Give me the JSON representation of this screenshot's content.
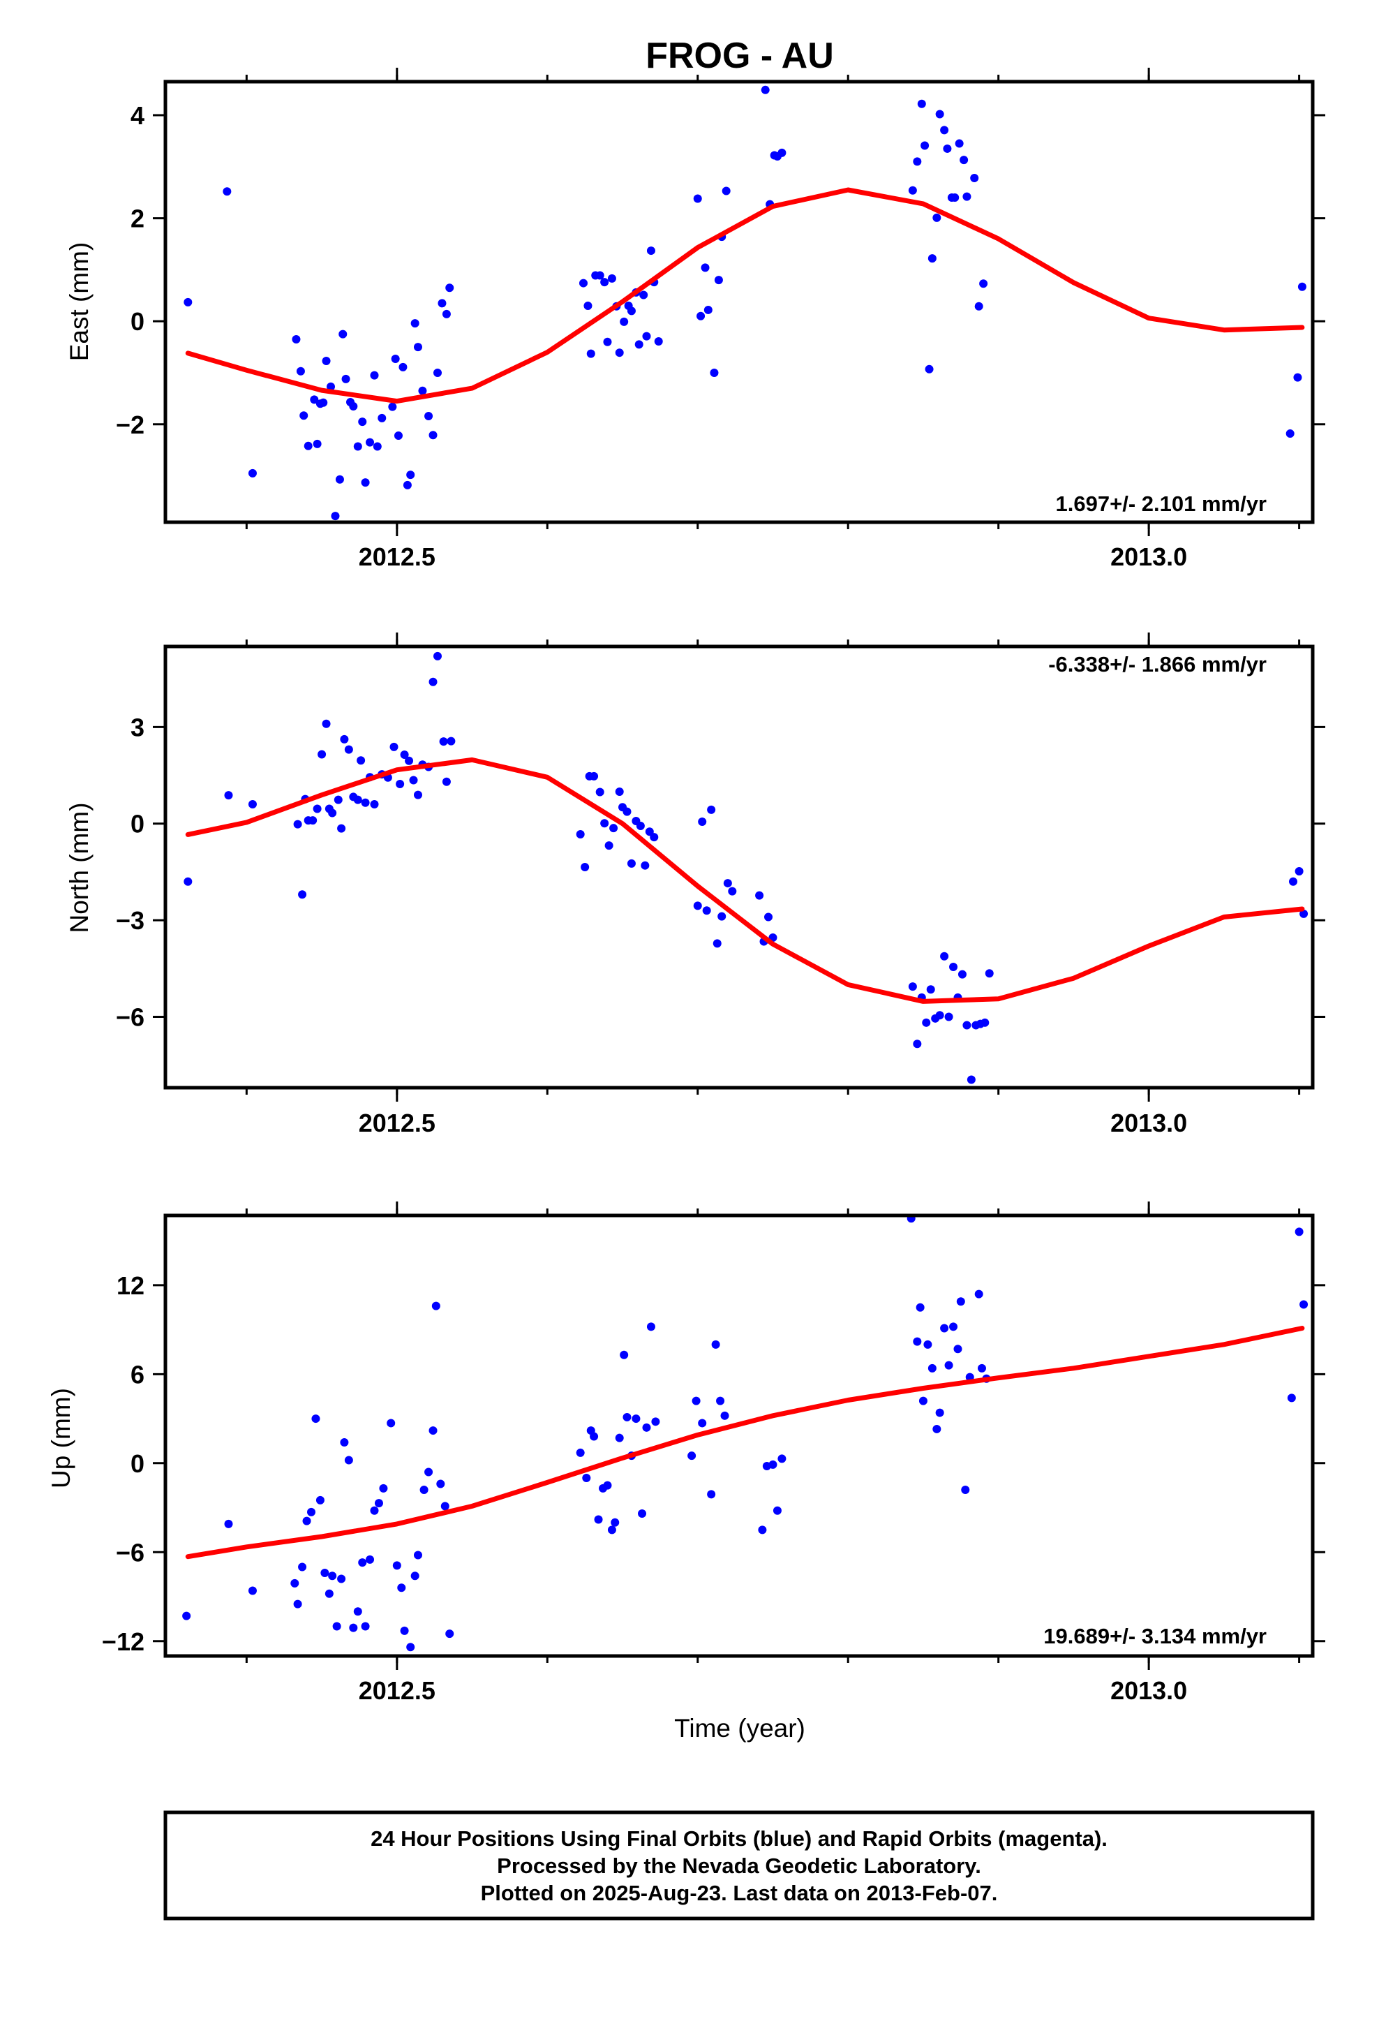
{
  "title": "FROG - AU",
  "x_axis_label": "Time (year)",
  "footer": {
    "line1": "24 Hour Positions Using Final Orbits (blue) and Rapid Orbits (magenta).",
    "line2": "Processed by the Nevada Geodetic Laboratory.",
    "line3": "Plotted on 2025-Aug-23. Last data on 2013-Feb-07."
  },
  "colors": {
    "data": "#0000ff",
    "model": "#ff0000",
    "frame": "#000000"
  },
  "chart_data": [
    {
      "type": "scatter",
      "panel": "east",
      "ylabel": "East (mm)",
      "rate_text": "1.697+/- 2.101 mm/yr",
      "rate_position": "bottom-right",
      "xlim": [
        2012.346,
        2013.109
      ],
      "ylim": [
        -3.9,
        4.65
      ],
      "xticks": [
        2012.5,
        2013.0
      ],
      "xticklabels": [
        "2012.5",
        "2013.0"
      ],
      "yticks": [
        -2,
        0,
        2,
        4
      ],
      "yticklabels": [
        "−2",
        "0",
        "2",
        "4"
      ],
      "points": [
        [
          2012.361,
          0.37
        ],
        [
          2012.387,
          2.52
        ],
        [
          2012.404,
          -2.95
        ],
        [
          2012.433,
          -0.35
        ],
        [
          2012.436,
          -0.97
        ],
        [
          2012.438,
          -1.83
        ],
        [
          2012.441,
          -2.42
        ],
        [
          2012.445,
          -1.52
        ],
        [
          2012.447,
          -2.38
        ],
        [
          2012.449,
          -1.6
        ],
        [
          2012.451,
          -1.58
        ],
        [
          2012.453,
          -0.77
        ],
        [
          2012.456,
          -1.27
        ],
        [
          2012.459,
          -3.78
        ],
        [
          2012.462,
          -3.07
        ],
        [
          2012.464,
          -0.25
        ],
        [
          2012.466,
          -1.12
        ],
        [
          2012.469,
          -1.57
        ],
        [
          2012.471,
          -1.65
        ],
        [
          2012.474,
          -2.43
        ],
        [
          2012.477,
          -1.95
        ],
        [
          2012.479,
          -3.13
        ],
        [
          2012.482,
          -2.35
        ],
        [
          2012.485,
          -1.05
        ],
        [
          2012.487,
          -2.43
        ],
        [
          2012.49,
          -1.88
        ],
        [
          2012.497,
          -1.66
        ],
        [
          2012.499,
          -0.73
        ],
        [
          2012.501,
          -2.22
        ],
        [
          2012.504,
          -0.89
        ],
        [
          2012.507,
          -3.18
        ],
        [
          2012.509,
          -2.98
        ],
        [
          2012.512,
          -0.04
        ],
        [
          2012.514,
          -0.5
        ],
        [
          2012.517,
          -1.35
        ],
        [
          2012.521,
          -1.84
        ],
        [
          2012.524,
          -2.21
        ],
        [
          2012.527,
          -1.0
        ],
        [
          2012.53,
          0.35
        ],
        [
          2012.533,
          0.14
        ],
        [
          2012.535,
          0.65
        ],
        [
          2012.624,
          0.74
        ],
        [
          2012.627,
          0.3
        ],
        [
          2012.629,
          -0.63
        ],
        [
          2012.632,
          0.89
        ],
        [
          2012.635,
          0.89
        ],
        [
          2012.638,
          0.76
        ],
        [
          2012.64,
          -0.4
        ],
        [
          2012.643,
          0.83
        ],
        [
          2012.646,
          0.29
        ],
        [
          2012.648,
          -0.61
        ],
        [
          2012.651,
          -0.01
        ],
        [
          2012.654,
          0.3
        ],
        [
          2012.656,
          0.2
        ],
        [
          2012.659,
          0.56
        ],
        [
          2012.661,
          -0.45
        ],
        [
          2012.664,
          0.51
        ],
        [
          2012.666,
          -0.29
        ],
        [
          2012.669,
          1.37
        ],
        [
          2012.671,
          0.76
        ],
        [
          2012.674,
          -0.39
        ],
        [
          2012.7,
          2.38
        ],
        [
          2012.702,
          0.1
        ],
        [
          2012.705,
          1.04
        ],
        [
          2012.707,
          0.22
        ],
        [
          2012.711,
          -1.0
        ],
        [
          2012.714,
          0.8
        ],
        [
          2012.716,
          1.64
        ],
        [
          2012.719,
          2.53
        ],
        [
          2012.745,
          4.49
        ],
        [
          2012.748,
          2.27
        ],
        [
          2012.751,
          3.22
        ],
        [
          2012.753,
          3.2
        ],
        [
          2012.756,
          3.27
        ],
        [
          2012.843,
          2.54
        ],
        [
          2012.846,
          3.1
        ],
        [
          2012.849,
          4.22
        ],
        [
          2012.851,
          3.41
        ],
        [
          2012.854,
          -0.93
        ],
        [
          2012.856,
          1.22
        ],
        [
          2012.859,
          2.01
        ],
        [
          2012.861,
          4.02
        ],
        [
          2012.864,
          3.71
        ],
        [
          2012.866,
          3.35
        ],
        [
          2012.869,
          2.4
        ],
        [
          2012.871,
          2.4
        ],
        [
          2012.874,
          3.45
        ],
        [
          2012.877,
          3.13
        ],
        [
          2012.879,
          2.42
        ],
        [
          2012.884,
          2.78
        ],
        [
          2012.887,
          0.29
        ],
        [
          2012.89,
          0.73
        ],
        [
          2013.094,
          -2.18
        ],
        [
          2013.099,
          -1.09
        ],
        [
          2013.102,
          0.67
        ]
      ],
      "model_x": [
        2012.361,
        2012.4,
        2012.45,
        2012.5,
        2012.55,
        2012.6,
        2012.65,
        2012.7,
        2012.75,
        2012.8,
        2012.85,
        2012.9,
        2012.95,
        2013.0,
        2013.05,
        2013.102
      ],
      "model_y": [
        -0.62,
        -0.95,
        -1.34,
        -1.55,
        -1.3,
        -0.6,
        0.38,
        1.43,
        2.23,
        2.55,
        2.28,
        1.6,
        0.75,
        0.06,
        -0.17,
        -0.12
      ]
    },
    {
      "type": "scatter",
      "panel": "north",
      "ylabel": "North (mm)",
      "rate_text": "-6.338+/- 1.866 mm/yr",
      "rate_position": "top-right",
      "xlim": [
        2012.346,
        2013.109
      ],
      "ylim": [
        -8.2,
        5.5
      ],
      "xticks": [
        2012.5,
        2013.0
      ],
      "xticklabels": [
        "2012.5",
        "2013.0"
      ],
      "yticks": [
        -6,
        -3,
        0,
        3
      ],
      "yticklabels": [
        "−6",
        "−3",
        "0",
        "3"
      ],
      "points": [
        [
          2012.361,
          -1.8
        ],
        [
          2012.388,
          0.88
        ],
        [
          2012.404,
          0.6
        ],
        [
          2012.434,
          -0.02
        ],
        [
          2012.437,
          -2.2
        ],
        [
          2012.439,
          0.76
        ],
        [
          2012.441,
          0.1
        ],
        [
          2012.444,
          0.1
        ],
        [
          2012.447,
          0.46
        ],
        [
          2012.45,
          2.15
        ],
        [
          2012.453,
          3.1
        ],
        [
          2012.455,
          0.46
        ],
        [
          2012.457,
          0.33
        ],
        [
          2012.461,
          0.74
        ],
        [
          2012.463,
          -0.15
        ],
        [
          2012.465,
          2.62
        ],
        [
          2012.468,
          2.3
        ],
        [
          2012.471,
          0.83
        ],
        [
          2012.474,
          0.74
        ],
        [
          2012.476,
          1.96
        ],
        [
          2012.479,
          0.65
        ],
        [
          2012.482,
          1.44
        ],
        [
          2012.485,
          0.6
        ],
        [
          2012.49,
          1.53
        ],
        [
          2012.494,
          1.43
        ],
        [
          2012.498,
          2.38
        ],
        [
          2012.502,
          1.23
        ],
        [
          2012.505,
          2.14
        ],
        [
          2012.508,
          1.95
        ],
        [
          2012.511,
          1.35
        ],
        [
          2012.514,
          0.89
        ],
        [
          2012.517,
          1.83
        ],
        [
          2012.521,
          1.76
        ],
        [
          2012.524,
          4.4
        ],
        [
          2012.527,
          5.2
        ],
        [
          2012.531,
          2.55
        ],
        [
          2012.533,
          1.3
        ],
        [
          2012.536,
          2.56
        ],
        [
          2012.622,
          -0.33
        ],
        [
          2012.625,
          -1.35
        ],
        [
          2012.628,
          1.47
        ],
        [
          2012.631,
          1.47
        ],
        [
          2012.635,
          0.98
        ],
        [
          2012.638,
          0.01
        ],
        [
          2012.641,
          -0.68
        ],
        [
          2012.644,
          -0.14
        ],
        [
          2012.648,
          0.99
        ],
        [
          2012.65,
          0.51
        ],
        [
          2012.653,
          0.37
        ],
        [
          2012.656,
          -1.24
        ],
        [
          2012.659,
          0.08
        ],
        [
          2012.662,
          -0.07
        ],
        [
          2012.665,
          -1.3
        ],
        [
          2012.668,
          -0.25
        ],
        [
          2012.671,
          -0.42
        ],
        [
          2012.7,
          -2.55
        ],
        [
          2012.703,
          0.06
        ],
        [
          2012.706,
          -2.7
        ],
        [
          2012.709,
          0.43
        ],
        [
          2012.713,
          -3.72
        ],
        [
          2012.716,
          -2.88
        ],
        [
          2012.72,
          -1.85
        ],
        [
          2012.723,
          -2.1
        ],
        [
          2012.741,
          -2.23
        ],
        [
          2012.744,
          -3.66
        ],
        [
          2012.747,
          -2.9
        ],
        [
          2012.75,
          -3.54
        ],
        [
          2012.843,
          -5.06
        ],
        [
          2012.846,
          -6.84
        ],
        [
          2012.849,
          -5.4
        ],
        [
          2012.852,
          -6.18
        ],
        [
          2012.855,
          -5.15
        ],
        [
          2012.858,
          -6.05
        ],
        [
          2012.861,
          -5.95
        ],
        [
          2012.864,
          -4.12
        ],
        [
          2012.867,
          -6.0
        ],
        [
          2012.87,
          -4.45
        ],
        [
          2012.873,
          -5.4
        ],
        [
          2012.876,
          -4.68
        ],
        [
          2012.879,
          -6.26
        ],
        [
          2012.882,
          -7.95
        ],
        [
          2012.885,
          -6.26
        ],
        [
          2012.888,
          -6.22
        ],
        [
          2012.891,
          -6.18
        ],
        [
          2012.894,
          -4.65
        ],
        [
          2013.096,
          -1.8
        ],
        [
          2013.1,
          -1.48
        ],
        [
          2013.103,
          -2.8
        ]
      ],
      "model_x": [
        2012.361,
        2012.4,
        2012.45,
        2012.5,
        2012.55,
        2012.6,
        2012.65,
        2012.7,
        2012.75,
        2012.8,
        2012.85,
        2012.9,
        2012.95,
        2013.0,
        2013.05,
        2013.102
      ],
      "model_y": [
        -0.34,
        0.04,
        0.89,
        1.67,
        1.98,
        1.44,
        0.0,
        -1.94,
        -3.74,
        -5.0,
        -5.52,
        -5.44,
        -4.8,
        -3.8,
        -2.9,
        -2.65
      ]
    },
    {
      "type": "scatter",
      "panel": "up",
      "ylabel": "Up (mm)",
      "rate_text": "19.689+/- 3.134 mm/yr",
      "rate_position": "bottom-right",
      "xlim": [
        2012.346,
        2013.109
      ],
      "ylim": [
        -13.0,
        16.7
      ],
      "xticks": [
        2012.5,
        2013.0
      ],
      "xticklabels": [
        "2012.5",
        "2013.0"
      ],
      "yticks": [
        -12,
        -6,
        0,
        6,
        12
      ],
      "yticklabels": [
        "−12",
        "−6",
        "0",
        "6",
        "12"
      ],
      "points": [
        [
          2012.36,
          -10.3
        ],
        [
          2012.388,
          -4.1
        ],
        [
          2012.404,
          -8.6
        ],
        [
          2012.432,
          -8.1
        ],
        [
          2012.434,
          -9.5
        ],
        [
          2012.437,
          -7.0
        ],
        [
          2012.44,
          -3.9
        ],
        [
          2012.443,
          -3.3
        ],
        [
          2012.446,
          3.0
        ],
        [
          2012.449,
          -2.5
        ],
        [
          2012.452,
          -7.4
        ],
        [
          2012.455,
          -8.8
        ],
        [
          2012.457,
          -7.6
        ],
        [
          2012.46,
          -11.0
        ],
        [
          2012.463,
          -7.8
        ],
        [
          2012.465,
          1.4
        ],
        [
          2012.468,
          0.2
        ],
        [
          2012.471,
          -11.1
        ],
        [
          2012.474,
          -10.0
        ],
        [
          2012.477,
          -6.7
        ],
        [
          2012.479,
          -11.0
        ],
        [
          2012.482,
          -6.5
        ],
        [
          2012.485,
          -3.2
        ],
        [
          2012.488,
          -2.7
        ],
        [
          2012.491,
          -1.7
        ],
        [
          2012.496,
          2.7
        ],
        [
          2012.5,
          -6.9
        ],
        [
          2012.503,
          -8.4
        ],
        [
          2012.505,
          -11.3
        ],
        [
          2012.509,
          -12.4
        ],
        [
          2012.512,
          -7.6
        ],
        [
          2012.514,
          -6.2
        ],
        [
          2012.518,
          -1.8
        ],
        [
          2012.521,
          -0.6
        ],
        [
          2012.524,
          2.2
        ],
        [
          2012.526,
          10.6
        ],
        [
          2012.529,
          -1.4
        ],
        [
          2012.532,
          -2.9
        ],
        [
          2012.535,
          -11.5
        ],
        [
          2012.622,
          0.7
        ],
        [
          2012.626,
          -1.0
        ],
        [
          2012.629,
          2.2
        ],
        [
          2012.631,
          1.8
        ],
        [
          2012.634,
          -3.8
        ],
        [
          2012.637,
          -1.7
        ],
        [
          2012.64,
          -1.5
        ],
        [
          2012.643,
          -4.5
        ],
        [
          2012.645,
          -4.0
        ],
        [
          2012.648,
          1.7
        ],
        [
          2012.651,
          7.3
        ],
        [
          2012.653,
          3.1
        ],
        [
          2012.656,
          0.5
        ],
        [
          2012.659,
          3.0
        ],
        [
          2012.663,
          -3.4
        ],
        [
          2012.666,
          2.4
        ],
        [
          2012.669,
          9.2
        ],
        [
          2012.672,
          2.8
        ],
        [
          2012.696,
          0.5
        ],
        [
          2012.699,
          4.2
        ],
        [
          2012.703,
          2.7
        ],
        [
          2012.709,
          -2.1
        ],
        [
          2012.712,
          8.0
        ],
        [
          2012.715,
          4.2
        ],
        [
          2012.718,
          3.2
        ],
        [
          2012.743,
          -4.5
        ],
        [
          2012.746,
          -0.2
        ],
        [
          2012.75,
          -0.1
        ],
        [
          2012.753,
          -3.2
        ],
        [
          2012.756,
          0.3
        ],
        [
          2012.842,
          16.5
        ],
        [
          2012.846,
          8.2
        ],
        [
          2012.848,
          10.5
        ],
        [
          2012.85,
          4.2
        ],
        [
          2012.853,
          8.0
        ],
        [
          2012.856,
          6.4
        ],
        [
          2012.859,
          2.3
        ],
        [
          2012.861,
          3.4
        ],
        [
          2012.864,
          9.1
        ],
        [
          2012.867,
          6.6
        ],
        [
          2012.87,
          9.2
        ],
        [
          2012.873,
          7.7
        ],
        [
          2012.875,
          10.9
        ],
        [
          2012.878,
          -1.8
        ],
        [
          2012.881,
          5.8
        ],
        [
          2012.887,
          11.4
        ],
        [
          2012.889,
          6.4
        ],
        [
          2012.892,
          5.7
        ],
        [
          2013.095,
          4.4
        ],
        [
          2013.1,
          15.6
        ],
        [
          2013.103,
          10.7
        ]
      ],
      "model_x": [
        2012.361,
        2012.4,
        2012.45,
        2012.5,
        2012.55,
        2012.6,
        2012.65,
        2012.7,
        2012.75,
        2012.8,
        2012.85,
        2012.9,
        2012.95,
        2013.0,
        2013.05,
        2013.102
      ],
      "model_y": [
        -6.3,
        -5.65,
        -4.95,
        -4.1,
        -2.9,
        -1.3,
        0.35,
        1.9,
        3.2,
        4.25,
        5.05,
        5.75,
        6.4,
        7.2,
        8.0,
        9.1
      ]
    }
  ]
}
